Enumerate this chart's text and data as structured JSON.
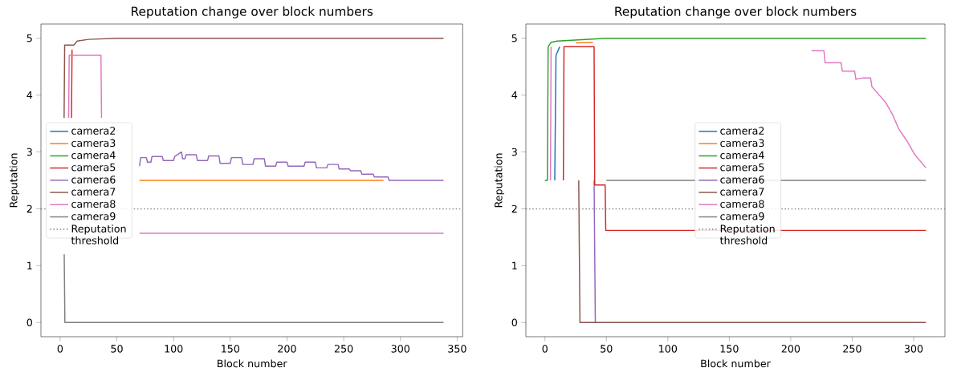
{
  "chart_data": [
    {
      "type": "line",
      "title": "Reputation change over block numbers",
      "xlabel": "Block number",
      "ylabel": "Reputation",
      "xlim": [
        -16.9,
        354.9
      ],
      "ylim": [
        -0.25,
        5.25
      ],
      "xticks": [
        0,
        50,
        100,
        150,
        200,
        250,
        300,
        350
      ],
      "yticks": [
        0,
        1,
        2,
        3,
        4,
        5
      ],
      "legend": "left",
      "ref_lines": [
        {
          "axis": "y",
          "value": 2,
          "label": "Reputation threshold",
          "color": "#7f7f7f",
          "line_style": "dotted"
        }
      ],
      "series": [
        {
          "name": "camera2",
          "color": "#1f77b4"
        },
        {
          "name": "camera3",
          "color": "#ff7f0e",
          "x": [
            70,
            285
          ],
          "values": [
            2.5,
            2.5
          ]
        },
        {
          "name": "camera4",
          "color": "#2ca02c"
        },
        {
          "name": "camera5",
          "color": "#d62728",
          "x": [
            10,
            10.5
          ],
          "values": [
            3.6,
            4.8
          ]
        },
        {
          "name": "camera6",
          "color": "#9467bd",
          "x": [
            70,
            71,
            76,
            77,
            80,
            81,
            90,
            91,
            100,
            101,
            107,
            108,
            110,
            111,
            120,
            121,
            130,
            131,
            140,
            141,
            150,
            151,
            160,
            161,
            170,
            171,
            180,
            181,
            190,
            191,
            200,
            201,
            215,
            216,
            225,
            226,
            235,
            236,
            245,
            246,
            255,
            256,
            265,
            266,
            276,
            277,
            289,
            290,
            300,
            338
          ],
          "values": [
            2.75,
            2.9,
            2.9,
            2.82,
            2.82,
            2.92,
            2.92,
            2.85,
            2.85,
            2.92,
            3.0,
            2.88,
            2.88,
            2.95,
            2.95,
            2.85,
            2.85,
            2.93,
            2.93,
            2.8,
            2.8,
            2.9,
            2.9,
            2.78,
            2.78,
            2.88,
            2.88,
            2.75,
            2.75,
            2.82,
            2.82,
            2.75,
            2.75,
            2.82,
            2.82,
            2.72,
            2.72,
            2.78,
            2.78,
            2.7,
            2.7,
            2.67,
            2.67,
            2.61,
            2.61,
            2.56,
            2.56,
            2.5,
            2.5,
            2.5
          ]
        },
        {
          "name": "camera7",
          "color": "#8c564b",
          "x": [
            3.5,
            4,
            12,
            13,
            15,
            25,
            50,
            338
          ],
          "values": [
            3.6,
            4.88,
            4.88,
            4.9,
            4.95,
            4.98,
            5,
            5
          ]
        },
        {
          "name": "camera8",
          "color": "#e377c2",
          "x": [
            7.5,
            8,
            36,
            36.5,
            50,
            70,
            338
          ],
          "values": [
            3.6,
            4.7,
            4.7,
            3.6,
            null,
            1.57,
            1.57
          ]
        },
        {
          "name": "camera9",
          "color": "#7f7f7f",
          "x": [
            3.6,
            4.2,
            338
          ],
          "values": [
            1.2,
            0,
            0
          ]
        }
      ]
    },
    {
      "type": "line",
      "title": "Reputation change over block numbers",
      "xlabel": "Block number",
      "ylabel": "Reputation",
      "xlim": [
        -15.5,
        325.5
      ],
      "ylim": [
        -0.25,
        5.25
      ],
      "xticks": [
        0,
        50,
        100,
        150,
        200,
        250,
        300
      ],
      "yticks": [
        0,
        1,
        2,
        3,
        4,
        5
      ],
      "legend": "center",
      "ref_lines": [
        {
          "axis": "y",
          "value": 2,
          "label": "Reputation threshold",
          "color": "#7f7f7f",
          "line_style": "dotted"
        }
      ],
      "series": [
        {
          "name": "camera2",
          "color": "#1f77b4",
          "x": [
            8,
            9,
            10,
            12
          ],
          "values": [
            2.5,
            4.7,
            4.75,
            4.85
          ]
        },
        {
          "name": "camera3",
          "color": "#ff7f0e",
          "x": [
            25,
            39
          ],
          "values": [
            4.92,
            4.93
          ]
        },
        {
          "name": "camera4",
          "color": "#2ca02c",
          "x": [
            0,
            2,
            2.6,
            5,
            10,
            50,
            310
          ],
          "values": [
            2.5,
            2.5,
            4.85,
            4.93,
            4.95,
            5,
            5
          ]
        },
        {
          "name": "camera5",
          "color": "#d62728",
          "x": [
            15,
            15.5,
            40,
            40.5,
            49,
            49.5,
            310
          ],
          "values": [
            2.5,
            4.85,
            4.85,
            2.42,
            2.42,
            1.62,
            1.62
          ]
        },
        {
          "name": "camera6",
          "color": "#9467bd",
          "x": [
            40,
            41
          ],
          "values": [
            2.5,
            0
          ]
        },
        {
          "name": "camera7",
          "color": "#8c564b",
          "x": [
            27.5,
            28.5,
            310
          ],
          "values": [
            2.5,
            0,
            0
          ]
        },
        {
          "name": "camera8",
          "color": "#e377c2",
          "x": [
            4.5,
            5,
            7,
            217,
            227,
            228,
            241,
            242,
            252,
            253,
            258,
            265,
            266,
            272,
            277,
            283,
            288,
            295,
            301,
            310
          ],
          "values": [
            2.5,
            4.85,
            null,
            4.78,
            4.78,
            4.57,
            4.57,
            4.42,
            4.42,
            4.28,
            4.3,
            4.3,
            4.15,
            4.0,
            3.88,
            3.65,
            3.4,
            3.18,
            2.95,
            2.72
          ]
        },
        {
          "name": "camera9",
          "color": "#7f7f7f",
          "x": [
            50,
            310
          ],
          "values": [
            2.5,
            2.5
          ]
        }
      ]
    }
  ]
}
